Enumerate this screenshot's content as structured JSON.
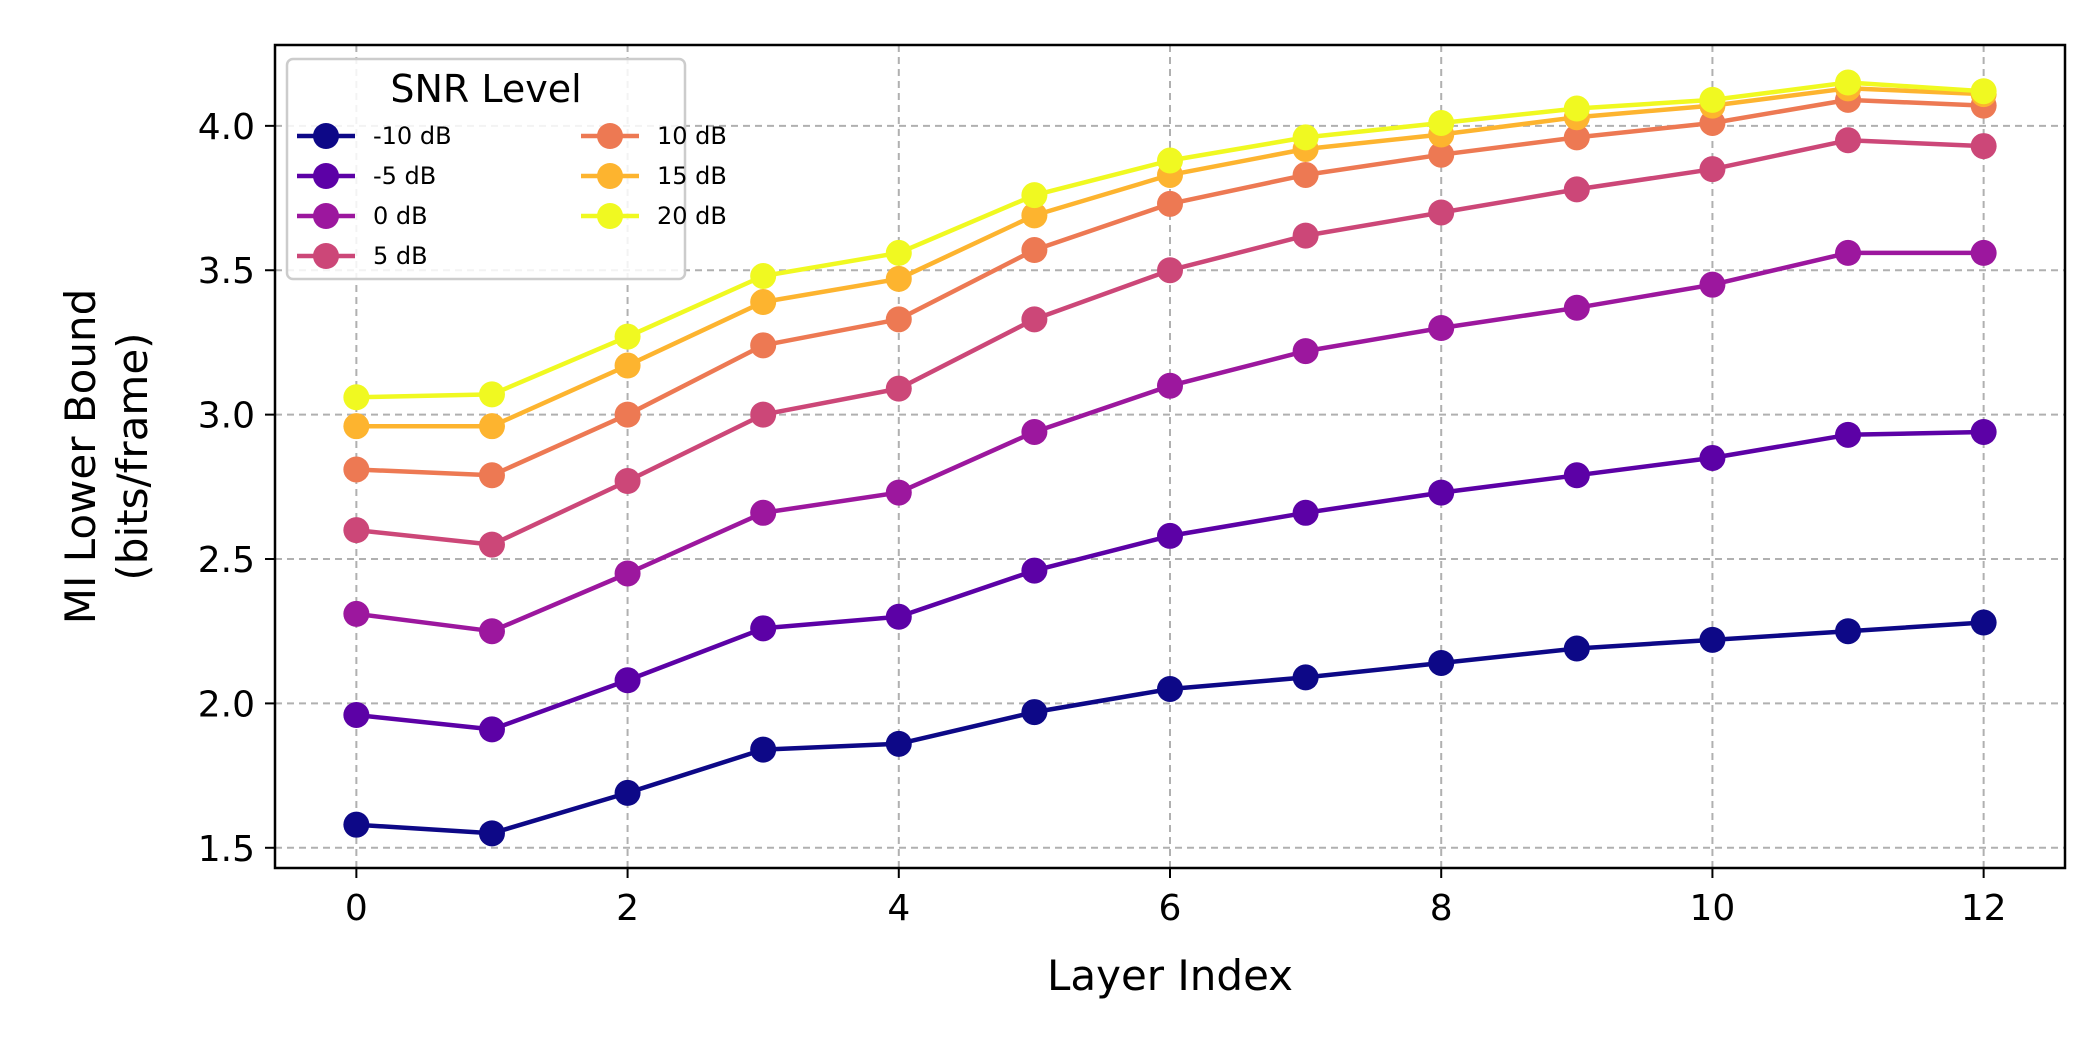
{
  "chart_data": {
    "type": "line",
    "xlabel": "Layer Index",
    "ylabel": [
      "MI Lower Bound",
      "(bits/frame)"
    ],
    "xlim": [
      -0.6,
      12.6
    ],
    "ylim": [
      1.43,
      4.28
    ],
    "xticks": [
      0,
      2,
      4,
      6,
      8,
      10,
      12
    ],
    "yticks": [
      1.5,
      2.0,
      2.5,
      3.0,
      3.5,
      4.0
    ],
    "ytick_labels": [
      "1.5",
      "2.0",
      "2.5",
      "3.0",
      "3.5",
      "4.0"
    ],
    "grid": true,
    "legend": {
      "title": "SNR Level",
      "placement": "upper left",
      "columns": 2
    },
    "x": [
      0,
      1,
      2,
      3,
      4,
      5,
      6,
      7,
      8,
      9,
      10,
      11,
      12
    ],
    "series": [
      {
        "name": "-10 dB",
        "color": "#0d0887",
        "values": [
          1.58,
          1.55,
          1.69,
          1.84,
          1.86,
          1.97,
          2.05,
          2.09,
          2.14,
          2.19,
          2.22,
          2.25,
          2.28
        ]
      },
      {
        "name": "-5 dB",
        "color": "#5c01a6",
        "values": [
          1.96,
          1.91,
          2.08,
          2.26,
          2.3,
          2.46,
          2.58,
          2.66,
          2.73,
          2.79,
          2.85,
          2.93,
          2.94
        ]
      },
      {
        "name": "0 dB",
        "color": "#9c179e",
        "values": [
          2.31,
          2.25,
          2.45,
          2.66,
          2.73,
          2.94,
          3.1,
          3.22,
          3.3,
          3.37,
          3.45,
          3.56,
          3.56
        ]
      },
      {
        "name": "5 dB",
        "color": "#cc4778",
        "values": [
          2.6,
          2.55,
          2.77,
          3.0,
          3.09,
          3.33,
          3.5,
          3.62,
          3.7,
          3.78,
          3.85,
          3.95,
          3.93
        ]
      },
      {
        "name": "10 dB",
        "color": "#ed7953",
        "values": [
          2.81,
          2.79,
          3.0,
          3.24,
          3.33,
          3.57,
          3.73,
          3.83,
          3.9,
          3.96,
          4.01,
          4.09,
          4.07
        ]
      },
      {
        "name": "15 dB",
        "color": "#fdb42f",
        "values": [
          2.96,
          2.96,
          3.17,
          3.39,
          3.47,
          3.69,
          3.83,
          3.92,
          3.97,
          4.03,
          4.07,
          4.13,
          4.11
        ]
      },
      {
        "name": "20 dB",
        "color": "#f0f921",
        "values": [
          3.06,
          3.07,
          3.27,
          3.48,
          3.56,
          3.76,
          3.88,
          3.96,
          4.01,
          4.06,
          4.09,
          4.15,
          4.12
        ]
      }
    ]
  }
}
